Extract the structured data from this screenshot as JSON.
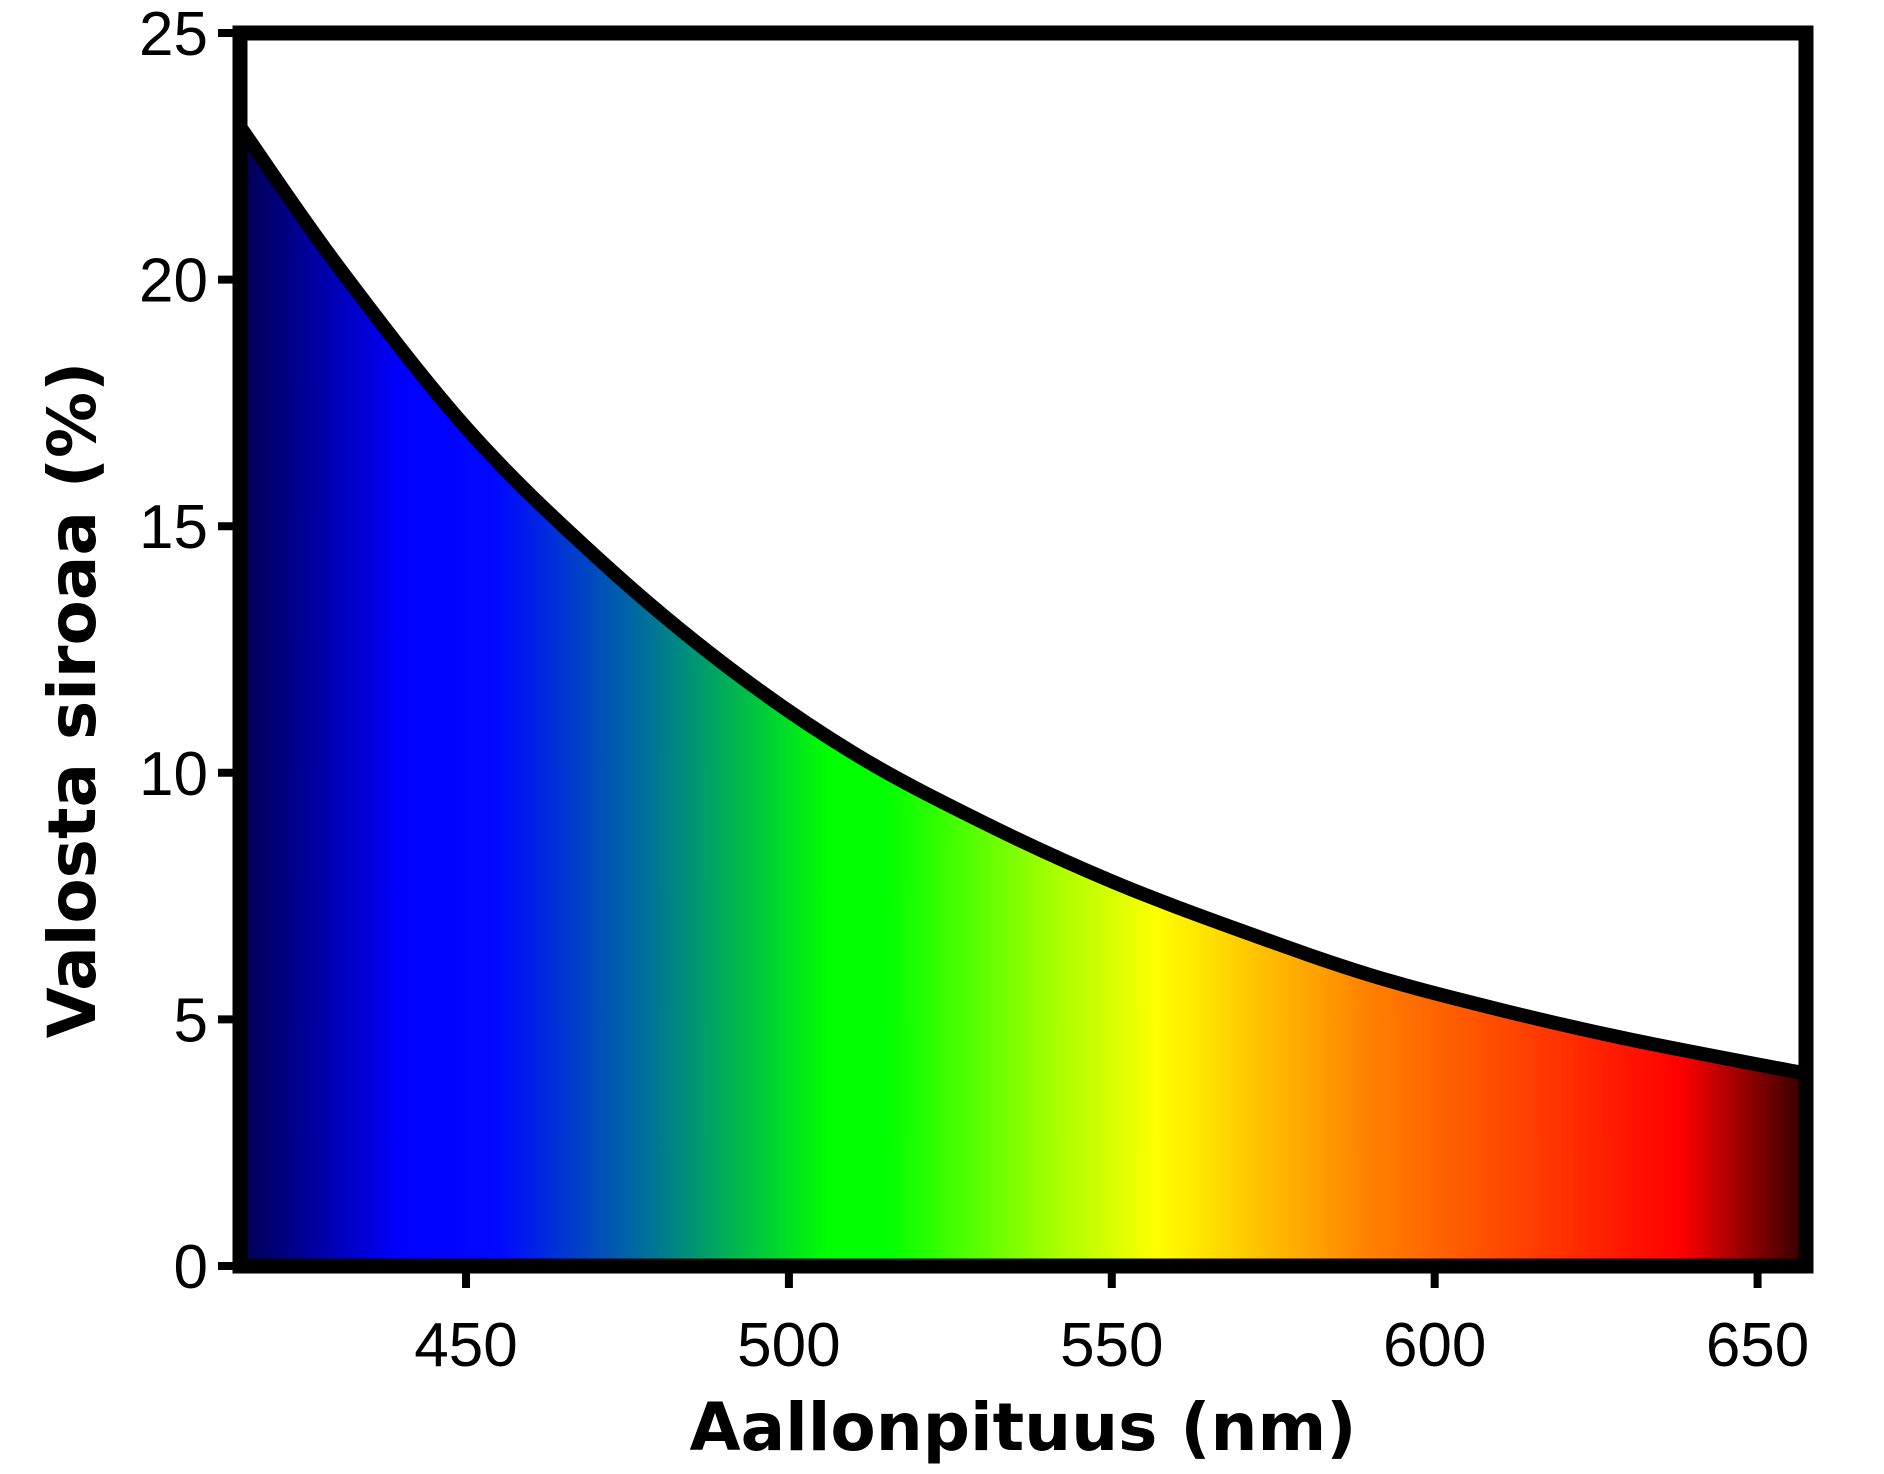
{
  "chart_data": {
    "type": "area",
    "title": "",
    "xlabel": "Aallonpituus (nm)",
    "ylabel": "Valosta siroaa (%)",
    "xlim": [
      415,
      657.5
    ],
    "ylim": [
      0,
      25
    ],
    "xticks": [
      450,
      500,
      550,
      600,
      650
    ],
    "yticks": [
      0,
      5,
      10,
      15,
      20,
      25
    ],
    "grid": false,
    "legend": "none",
    "series": [
      {
        "x": [
          416,
          430,
          450,
          470,
          490,
          510,
          530,
          550,
          570,
          590,
          610,
          630,
          656.5
        ],
        "y": [
          23.1,
          20.3,
          17.0,
          14.4,
          12.2,
          10.4,
          9.0,
          7.8,
          6.8,
          5.9,
          5.2,
          4.6,
          3.9
        ]
      }
    ],
    "fill": "visible-spectrum gradient",
    "spectrum_stops": [
      {
        "nm": 415,
        "color": "#000050"
      },
      {
        "nm": 440,
        "color": "#0000ff"
      },
      {
        "nm": 455,
        "color": "#0008ff"
      },
      {
        "nm": 480,
        "color": "#007a90"
      },
      {
        "nm": 506,
        "color": "#00ff00"
      },
      {
        "nm": 515,
        "color": "#00ff00"
      },
      {
        "nm": 540,
        "color": "#a0ff00"
      },
      {
        "nm": 557,
        "color": "#ffff00"
      },
      {
        "nm": 590,
        "color": "#ff8000"
      },
      {
        "nm": 638,
        "color": "#ff0000"
      },
      {
        "nm": 657.5,
        "color": "#300000"
      }
    ],
    "line_color": "#000000",
    "frame_color": "#000000"
  }
}
